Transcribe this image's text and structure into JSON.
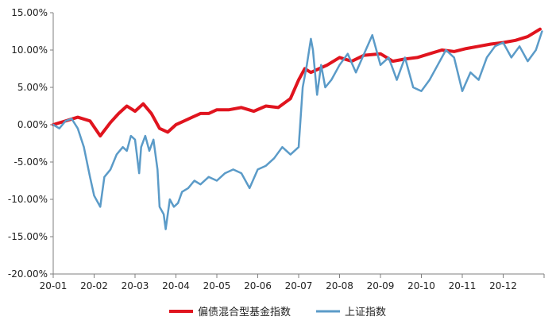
{
  "chart_data": {
    "type": "line",
    "title": "",
    "xlabel": "",
    "ylabel": "",
    "ylim": [
      -20,
      15
    ],
    "yticks": [
      15,
      10,
      5,
      0,
      -5,
      -10,
      -15,
      -20
    ],
    "ytick_labels": [
      "15.00%",
      "10.00%",
      "5.00%",
      "0.00%",
      "-5.00%",
      "-10.00%",
      "-15.00%",
      "-20.00%"
    ],
    "xlim": [
      0,
      12
    ],
    "x_categories": [
      "20-01",
      "20-02",
      "20-03",
      "20-04",
      "20-05",
      "20-06",
      "20-07",
      "20-08",
      "20-09",
      "20-10",
      "20-11",
      "20-12"
    ],
    "grid": false,
    "legend_position": "bottom",
    "series": [
      {
        "name": "偏债混合型基金指数",
        "color": "#e0141e",
        "x": [
          0,
          0.3,
          0.6,
          0.9,
          1.15,
          1.4,
          1.6,
          1.8,
          2.0,
          2.2,
          2.4,
          2.6,
          2.8,
          3.0,
          3.2,
          3.4,
          3.6,
          3.8,
          4.0,
          4.3,
          4.6,
          4.9,
          5.2,
          5.5,
          5.8,
          6.0,
          6.15,
          6.3,
          6.5,
          6.7,
          7.0,
          7.3,
          7.6,
          8.0,
          8.3,
          8.6,
          8.9,
          9.2,
          9.5,
          9.8,
          10.1,
          10.4,
          10.7,
          11.0,
          11.3,
          11.6,
          11.9
        ],
        "y": [
          0,
          0.5,
          1,
          0.5,
          -1.5,
          0.3,
          1.5,
          2.5,
          1.8,
          2.8,
          1.5,
          -0.5,
          -1.0,
          0.0,
          0.5,
          1.0,
          1.5,
          1.5,
          2.0,
          2.0,
          2.3,
          1.8,
          2.5,
          2.3,
          3.5,
          6.0,
          7.5,
          7.0,
          7.5,
          8.0,
          9.0,
          8.5,
          9.3,
          9.5,
          8.5,
          8.8,
          9.0,
          9.5,
          10.0,
          9.8,
          10.2,
          10.5,
          10.8,
          11.0,
          11.3,
          11.8,
          12.8
        ]
      },
      {
        "name": "上证指数",
        "color": "#5b9bc8",
        "x": [
          0,
          0.15,
          0.3,
          0.45,
          0.6,
          0.75,
          0.9,
          1.0,
          1.15,
          1.25,
          1.4,
          1.55,
          1.7,
          1.8,
          1.9,
          2.0,
          2.1,
          2.15,
          2.25,
          2.35,
          2.45,
          2.55,
          2.6,
          2.7,
          2.75,
          2.85,
          2.95,
          3.05,
          3.15,
          3.3,
          3.45,
          3.6,
          3.8,
          4.0,
          4.2,
          4.4,
          4.6,
          4.8,
          5.0,
          5.2,
          5.4,
          5.6,
          5.8,
          6.0,
          6.1,
          6.2,
          6.3,
          6.35,
          6.45,
          6.55,
          6.65,
          6.8,
          7.0,
          7.2,
          7.4,
          7.6,
          7.8,
          8.0,
          8.2,
          8.4,
          8.6,
          8.8,
          9.0,
          9.2,
          9.4,
          9.6,
          9.8,
          10.0,
          10.2,
          10.4,
          10.6,
          10.8,
          11.0,
          11.2,
          11.4,
          11.6,
          11.8,
          11.95
        ],
        "y": [
          0,
          -0.5,
          0.5,
          0.8,
          -0.5,
          -3,
          -7,
          -9.5,
          -11,
          -7,
          -6,
          -4,
          -3,
          -3.5,
          -1.5,
          -2,
          -6.5,
          -3,
          -1.5,
          -3.5,
          -2,
          -6,
          -11,
          -12,
          -14,
          -10,
          -11,
          -10.5,
          -9,
          -8.5,
          -7.5,
          -8,
          -7,
          -7.5,
          -6.5,
          -6.0,
          -6.5,
          -8.5,
          -6,
          -5.5,
          -4.5,
          -3,
          -4.0,
          -3,
          5,
          8,
          11.5,
          10,
          4,
          8,
          5,
          6,
          8,
          9.5,
          7,
          9.5,
          12,
          8,
          9,
          6,
          9,
          5,
          4.5,
          6,
          8,
          10,
          9,
          4.5,
          7,
          6,
          9,
          10.5,
          11,
          9,
          10.5,
          8.5,
          10,
          12.5
        ]
      }
    ]
  }
}
